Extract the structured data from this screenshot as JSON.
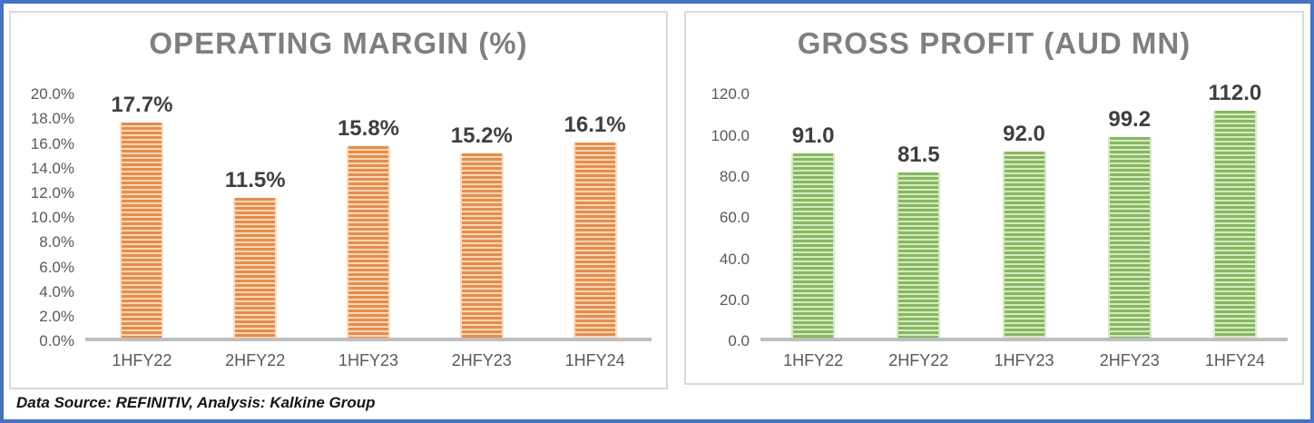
{
  "page": {
    "caption": "Data Source: REFINITIV, Analysis: Kalkine Group",
    "frame_color": "#4472C4",
    "box_border_color": "#D9D9D9",
    "axis_line_color": "#BFBFBF",
    "title_color": "#7F7F7F",
    "tick_label_color": "#595959",
    "data_label_color": "#3F3F3F"
  },
  "chart_data": [
    {
      "type": "bar",
      "title": "OPERATING MARGIN (%)",
      "categories": [
        "1HFY22",
        "2HFY22",
        "1HFY23",
        "2HFY23",
        "1HFY24"
      ],
      "values": [
        17.7,
        11.5,
        15.8,
        15.2,
        16.1
      ],
      "data_labels": [
        "17.7%",
        "11.5%",
        "15.8%",
        "15.2%",
        "16.1%"
      ],
      "xlabel": "",
      "ylabel": "",
      "ylim": [
        0,
        20
      ],
      "y_ticks": [
        "20.0%",
        "18.0%",
        "16.0%",
        "14.0%",
        "12.0%",
        "10.0%",
        "8.0%",
        "6.0%",
        "4.0%",
        "2.0%",
        "0.0%"
      ],
      "grid": false,
      "legend": "none",
      "bar_color": "#EE8A43",
      "bar_stripe_color": "#FBDCC3",
      "bar_pattern": "horizontal-stripes"
    },
    {
      "type": "bar",
      "title": "GROSS PROFIT (AUD MN)",
      "categories": [
        "1HFY22",
        "2HFY22",
        "1HFY23",
        "2HFY23",
        "1HFY24"
      ],
      "values": [
        91.0,
        81.5,
        92.0,
        99.2,
        112.0
      ],
      "data_labels": [
        "91.0",
        "81.5",
        "92.0",
        "99.2",
        "112.0"
      ],
      "xlabel": "",
      "ylabel": "",
      "ylim": [
        0,
        120
      ],
      "y_ticks": [
        "120.0",
        "100.0",
        "80.0",
        "60.0",
        "40.0",
        "20.0",
        "0.0"
      ],
      "grid": false,
      "legend": "none",
      "bar_color": "#85B95C",
      "bar_stripe_color": "#D7E9C5",
      "bar_pattern": "horizontal-stripes"
    }
  ]
}
